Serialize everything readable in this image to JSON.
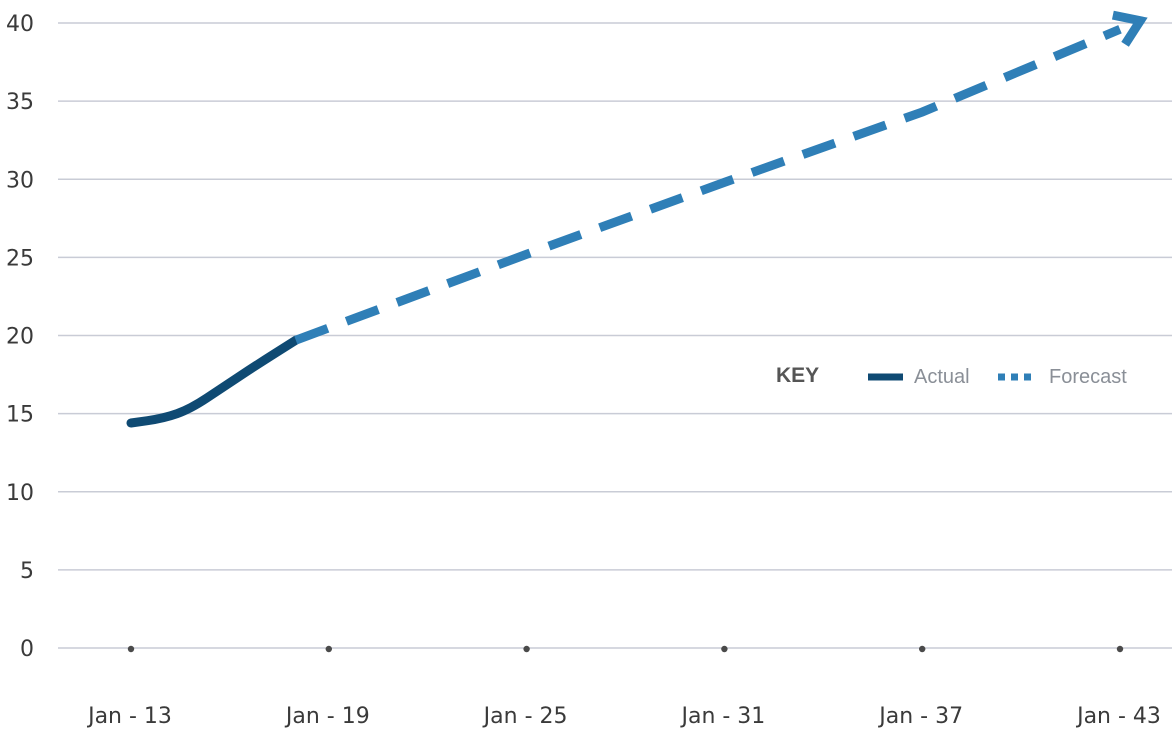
{
  "chart_data": {
    "type": "line",
    "x": [
      "Jan - 13",
      "Jan - 19",
      "Jan - 25",
      "Jan - 31",
      "Jan - 37",
      "Jan - 43"
    ],
    "ylim": [
      0,
      40
    ],
    "yticks": [
      0,
      5,
      10,
      15,
      20,
      25,
      30,
      35,
      40
    ],
    "grid": true,
    "legend": {
      "title": "KEY",
      "placement": "right-middle",
      "entries": [
        "Actual",
        "Forecast"
      ]
    },
    "series": [
      {
        "name": "Actual",
        "style": "solid",
        "color": "#0f4a73",
        "points": [
          {
            "x": 13.0,
            "y": 14.4
          },
          {
            "x": 14.0,
            "y": 14.7
          },
          {
            "x": 14.8,
            "y": 15.3
          },
          {
            "x": 15.8,
            "y": 16.7
          },
          {
            "x": 16.8,
            "y": 18.1
          },
          {
            "x": 18.0,
            "y": 19.7
          }
        ]
      },
      {
        "name": "Forecast",
        "style": "dashed",
        "color": "#2f7fb7",
        "points": [
          {
            "x": 18.0,
            "y": 19.7
          },
          {
            "x": 25.0,
            "y": 25.2
          },
          {
            "x": 31.0,
            "y": 29.8
          },
          {
            "x": 37.0,
            "y": 34.3
          },
          {
            "x": 43.0,
            "y": 39.6
          }
        ]
      }
    ]
  }
}
